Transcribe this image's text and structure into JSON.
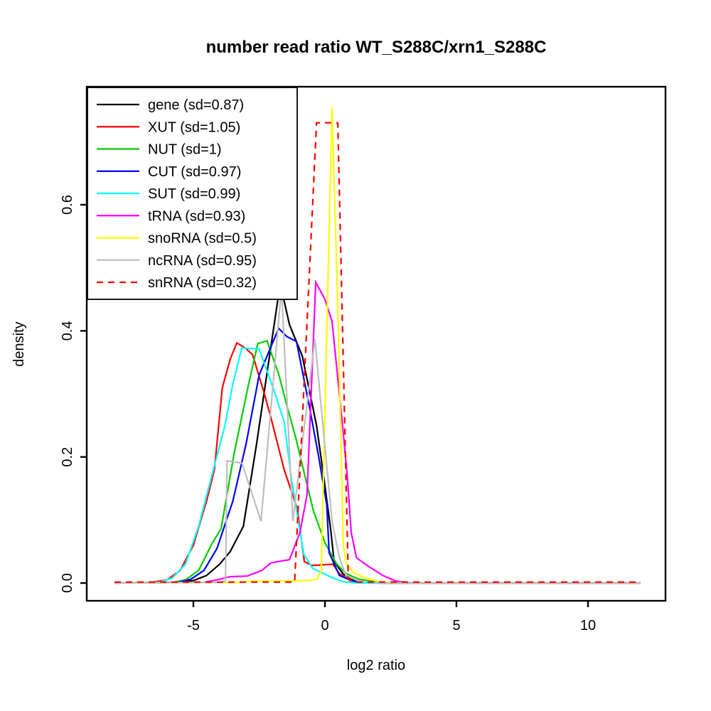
{
  "title": "number read ratio WT_S288C/xrn1_S288C",
  "chart_data": {
    "type": "line",
    "title": "number read ratio WT_S288C/xrn1_S288C",
    "xlabel": "log2 ratio",
    "ylabel": "density",
    "xlim": [
      -9,
      13
    ],
    "ylim": [
      0,
      0.787
    ],
    "grid": false,
    "legend_position": "top-left",
    "x_ticks": [
      -5,
      0,
      5,
      10
    ],
    "x_tick_labels": [
      "-5",
      "0",
      "5",
      "10"
    ],
    "y_ticks": [
      0.0,
      0.2,
      0.4,
      0.6
    ],
    "y_tick_labels": [
      "0.0",
      "0.2",
      "0.4",
      "0.6"
    ],
    "series": [
      {
        "name": "gene",
        "label": "gene (sd=0.87)",
        "color": "#000000",
        "dash": false,
        "points": [
          [
            -8,
            0
          ],
          [
            -5.5,
            0.001
          ],
          [
            -5,
            0.004
          ],
          [
            -4.5,
            0.012
          ],
          [
            -4,
            0.03
          ],
          [
            -3.6,
            0.05
          ],
          [
            -3.1,
            0.09
          ],
          [
            -2.6,
            0.22
          ],
          [
            -1.7,
            0.475
          ],
          [
            -1.35,
            0.41
          ],
          [
            -0.86,
            0.36
          ],
          [
            -0.32,
            0.25
          ],
          [
            -0.05,
            0.17
          ],
          [
            0.22,
            0.085
          ],
          [
            0.35,
            0.034
          ],
          [
            0.7,
            0.014
          ],
          [
            1.05,
            0.005
          ],
          [
            1.6,
            0.001
          ],
          [
            2.2,
            0
          ],
          [
            12,
            0
          ]
        ]
      },
      {
        "name": "XUT",
        "label": "XUT (sd=1.05)",
        "color": "#ff0000",
        "dash": false,
        "points": [
          [
            -8,
            0
          ],
          [
            -6.6,
            0.001
          ],
          [
            -6,
            0.005
          ],
          [
            -5.5,
            0.02
          ],
          [
            -5,
            0.06
          ],
          [
            -4.5,
            0.13
          ],
          [
            -4.2,
            0.18
          ],
          [
            -3.9,
            0.31
          ],
          [
            -3.6,
            0.355
          ],
          [
            -3.35,
            0.381
          ],
          [
            -3,
            0.372
          ],
          [
            -2.75,
            0.362
          ],
          [
            -2.3,
            0.3
          ],
          [
            -2.05,
            0.262
          ],
          [
            -1.55,
            0.18
          ],
          [
            -1.05,
            0.118
          ],
          [
            -0.78,
            0.034
          ],
          [
            -0.5,
            0.028
          ],
          [
            0,
            0.029
          ],
          [
            0.3,
            0.03
          ],
          [
            0.55,
            0.015
          ],
          [
            0.95,
            0.004
          ],
          [
            1.5,
            0.001
          ],
          [
            2.2,
            0
          ],
          [
            12,
            0
          ]
        ]
      },
      {
        "name": "NUT",
        "label": "NUT (sd=1)",
        "color": "#00cd00",
        "dash": false,
        "points": [
          [
            -8,
            0
          ],
          [
            -5.8,
            0.001
          ],
          [
            -5.3,
            0.005
          ],
          [
            -4.8,
            0.02
          ],
          [
            -4.3,
            0.062
          ],
          [
            -3.95,
            0.086
          ],
          [
            -3.45,
            0.206
          ],
          [
            -2.9,
            0.316
          ],
          [
            -2.55,
            0.38
          ],
          [
            -2.2,
            0.384
          ],
          [
            -1.75,
            0.33
          ],
          [
            -1.45,
            0.282
          ],
          [
            -1.1,
            0.229
          ],
          [
            -0.45,
            0.116
          ],
          [
            0,
            0.064
          ],
          [
            0.45,
            0.03
          ],
          [
            0.8,
            0.015
          ],
          [
            1.3,
            0.006
          ],
          [
            1.9,
            0.002
          ],
          [
            2.5,
            0
          ],
          [
            12,
            0
          ]
        ]
      },
      {
        "name": "CUT",
        "label": "CUT (sd=0.97)",
        "color": "#0000ff",
        "dash": false,
        "points": [
          [
            -8,
            0
          ],
          [
            -5.6,
            0.001
          ],
          [
            -5.1,
            0.006
          ],
          [
            -4.6,
            0.02
          ],
          [
            -4.1,
            0.055
          ],
          [
            -3.5,
            0.13
          ],
          [
            -3,
            0.22
          ],
          [
            -2.5,
            0.33
          ],
          [
            -2.1,
            0.37
          ],
          [
            -1.76,
            0.404
          ],
          [
            -1.45,
            0.391
          ],
          [
            -1.08,
            0.383
          ],
          [
            -0.6,
            0.282
          ],
          [
            -0.25,
            0.203
          ],
          [
            0.07,
            0.124
          ],
          [
            0.16,
            0.048
          ],
          [
            0.55,
            0.012
          ],
          [
            1.05,
            0.003
          ],
          [
            1.6,
            0
          ],
          [
            12,
            0
          ]
        ]
      },
      {
        "name": "SUT",
        "label": "SUT (sd=0.99)",
        "color": "#00ffff",
        "dash": false,
        "points": [
          [
            -8,
            0
          ],
          [
            -6.3,
            0.001
          ],
          [
            -5.8,
            0.008
          ],
          [
            -5.3,
            0.03
          ],
          [
            -4.8,
            0.09
          ],
          [
            -4.3,
            0.17
          ],
          [
            -3.8,
            0.25
          ],
          [
            -3.5,
            0.316
          ],
          [
            -3.16,
            0.373
          ],
          [
            -2.5,
            0.371
          ],
          [
            -1.95,
            0.307
          ],
          [
            -1.55,
            0.256
          ],
          [
            -1.27,
            0.164
          ],
          [
            -0.8,
            0.045
          ],
          [
            -0.46,
            0.023
          ],
          [
            0,
            0.014
          ],
          [
            0.25,
            0.009
          ],
          [
            0.7,
            0.002
          ],
          [
            1.2,
            0
          ],
          [
            12,
            0
          ]
        ]
      },
      {
        "name": "tRNA",
        "label": "tRNA (sd=0.93)",
        "color": "#ff00ff",
        "dash": false,
        "points": [
          [
            -8,
            0
          ],
          [
            -4.6,
            0.001
          ],
          [
            -4.1,
            0.005
          ],
          [
            -3.6,
            0.01
          ],
          [
            -2.95,
            0.011
          ],
          [
            -2.4,
            0.02
          ],
          [
            -2.05,
            0.032
          ],
          [
            -1.35,
            0.037
          ],
          [
            -0.95,
            0.08
          ],
          [
            -0.68,
            0.14
          ],
          [
            -0.35,
            0.477
          ],
          [
            0,
            0.45
          ],
          [
            0.27,
            0.415
          ],
          [
            0.67,
            0.25
          ],
          [
            0.85,
            0.17
          ],
          [
            1,
            0.08
          ],
          [
            1.2,
            0.04
          ],
          [
            1.6,
            0.028
          ],
          [
            2.2,
            0.012
          ],
          [
            2.7,
            0.003
          ],
          [
            3.3,
            0
          ],
          [
            12,
            0
          ]
        ]
      },
      {
        "name": "snoRNA",
        "label": "snoRNA (sd=0.5)",
        "color": "#ffff00",
        "dash": false,
        "points": [
          [
            -8,
            0
          ],
          [
            -3.3,
            0.001
          ],
          [
            -2.8,
            0.003
          ],
          [
            -1.8,
            0.003
          ],
          [
            -0.6,
            0.004
          ],
          [
            -0.3,
            0.006
          ],
          [
            -0.14,
            0.02
          ],
          [
            0.27,
            0.755
          ],
          [
            0.5,
            0.42
          ],
          [
            0.7,
            0.06
          ],
          [
            0.82,
            0.03
          ],
          [
            1.1,
            0.016
          ],
          [
            1.55,
            0.008
          ],
          [
            2.1,
            0.002
          ],
          [
            2.6,
            0
          ],
          [
            12,
            0
          ]
        ]
      },
      {
        "name": "ncRNA",
        "label": "ncRNA (sd=0.95)",
        "color": "#bebebe",
        "dash": false,
        "points": [
          [
            -8,
            0
          ],
          [
            -3.95,
            0.001
          ],
          [
            -3.78,
            0.003
          ],
          [
            -3.72,
            0.194
          ],
          [
            -3.15,
            0.19
          ],
          [
            -2.43,
            0.098
          ],
          [
            -1.65,
            0.468
          ],
          [
            -1.22,
            0.098
          ],
          [
            -0.38,
            0.387
          ],
          [
            -0.19,
            0.3
          ],
          [
            0.27,
            0.098
          ],
          [
            0.55,
            0.04
          ],
          [
            0.8,
            0.012
          ],
          [
            1.3,
            0.003
          ],
          [
            1.9,
            0.001
          ],
          [
            2.4,
            0
          ],
          [
            12,
            0
          ]
        ]
      },
      {
        "name": "snRNA",
        "label": "snRNA (sd=0.32)",
        "color": "#ff0000",
        "dash": true,
        "points": [
          [
            -8,
            0.0015
          ],
          [
            -1.15,
            0.0015
          ],
          [
            -0.32,
            0.73
          ],
          [
            0.49,
            0.73
          ],
          [
            0.89,
            0.006
          ],
          [
            1.2,
            0.0015
          ],
          [
            12,
            0.0015
          ]
        ]
      }
    ]
  }
}
